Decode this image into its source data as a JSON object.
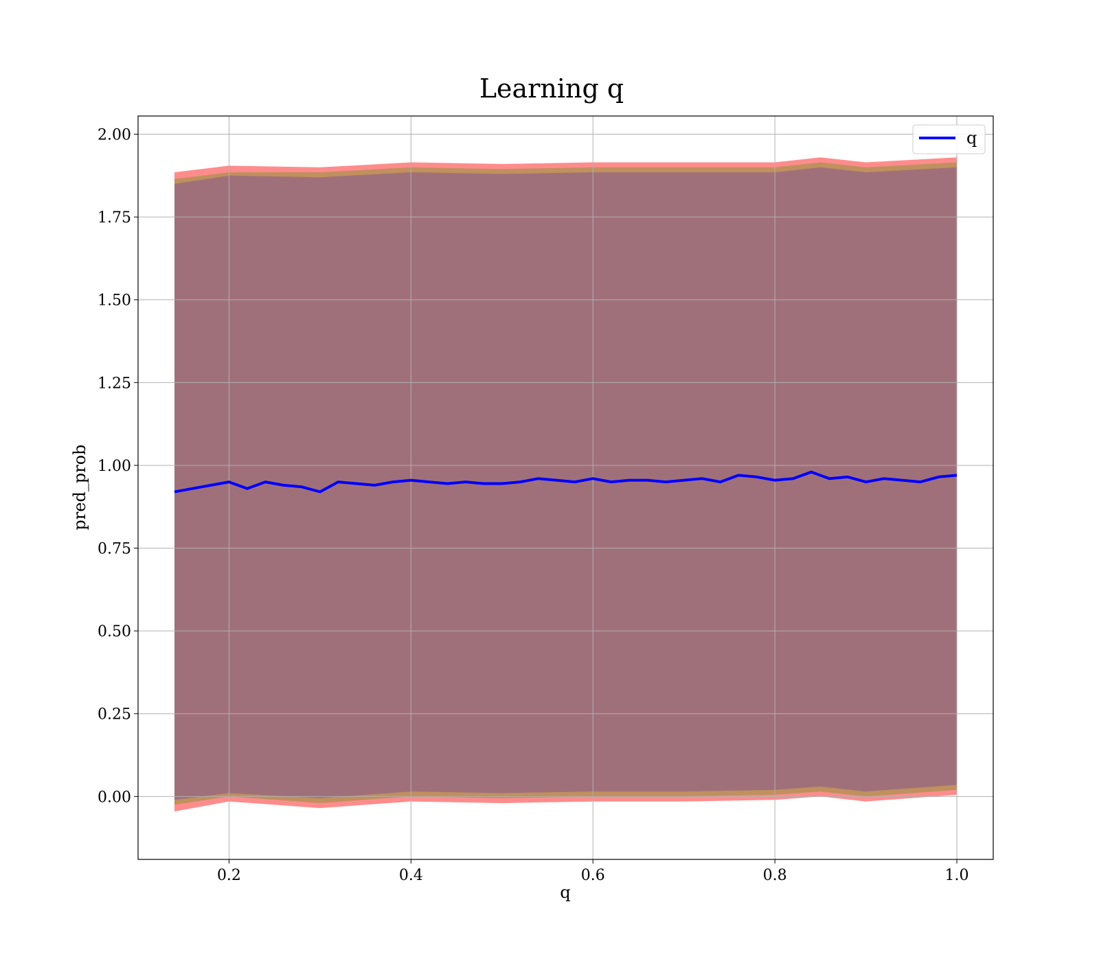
{
  "chart_data": {
    "type": "line",
    "title": "Learning q",
    "xlabel": "q",
    "ylabel": "pred_prob",
    "xlim": [
      0.1,
      1.04
    ],
    "ylim": [
      -0.19,
      2.055
    ],
    "grid": true,
    "legend_position": "top-right",
    "x_ticks": [
      0.2,
      0.4,
      0.6,
      0.8,
      1.0
    ],
    "x_tick_labels": [
      "0.2",
      "0.4",
      "0.6",
      "0.8",
      "1.0"
    ],
    "y_ticks": [
      0.0,
      0.25,
      0.5,
      0.75,
      1.0,
      1.25,
      1.5,
      1.75,
      2.0
    ],
    "y_tick_labels": [
      "0.00",
      "0.25",
      "0.50",
      "0.75",
      "1.00",
      "1.25",
      "1.50",
      "1.75",
      "2.00"
    ],
    "colors": {
      "line": "#0000ff",
      "band_outer": "#ff8c8c",
      "band_middle": "#c0905e",
      "band_inner": "#a0707a",
      "grid": "#b0b0b0"
    },
    "series": [
      {
        "name": "q",
        "x": [
          0.14,
          0.16,
          0.18,
          0.2,
          0.22,
          0.24,
          0.26,
          0.28,
          0.3,
          0.32,
          0.34,
          0.36,
          0.38,
          0.4,
          0.42,
          0.44,
          0.46,
          0.48,
          0.5,
          0.52,
          0.54,
          0.56,
          0.58,
          0.6,
          0.62,
          0.64,
          0.66,
          0.68,
          0.7,
          0.72,
          0.74,
          0.76,
          0.78,
          0.8,
          0.82,
          0.84,
          0.86,
          0.88,
          0.9,
          0.92,
          0.94,
          0.96,
          0.98,
          1.0
        ],
        "y": [
          0.92,
          0.93,
          0.94,
          0.95,
          0.93,
          0.95,
          0.94,
          0.935,
          0.92,
          0.95,
          0.945,
          0.94,
          0.95,
          0.955,
          0.95,
          0.945,
          0.95,
          0.945,
          0.945,
          0.95,
          0.96,
          0.955,
          0.95,
          0.96,
          0.95,
          0.955,
          0.955,
          0.95,
          0.955,
          0.96,
          0.95,
          0.97,
          0.965,
          0.955,
          0.96,
          0.98,
          0.96,
          0.965,
          0.95,
          0.96,
          0.955,
          0.95,
          0.965,
          0.97
        ]
      }
    ],
    "bands": [
      {
        "role": "outer",
        "x": [
          0.14,
          0.2,
          0.3,
          0.4,
          0.5,
          0.6,
          0.7,
          0.8,
          0.85,
          0.9,
          1.0
        ],
        "upper": [
          1.885,
          1.905,
          1.9,
          1.915,
          1.91,
          1.915,
          1.915,
          1.915,
          1.93,
          1.915,
          1.93
        ],
        "lower": [
          -0.045,
          -0.015,
          -0.035,
          -0.015,
          -0.02,
          -0.015,
          -0.015,
          -0.01,
          0.0,
          -0.015,
          0.005
        ]
      },
      {
        "role": "middle",
        "x": [
          0.14,
          0.2,
          0.3,
          0.4,
          0.5,
          0.6,
          0.7,
          0.8,
          0.85,
          0.9,
          1.0
        ],
        "upper": [
          1.865,
          1.885,
          1.885,
          1.9,
          1.895,
          1.9,
          1.9,
          1.9,
          1.915,
          1.9,
          1.915
        ],
        "lower": [
          -0.025,
          0.0,
          -0.02,
          0.0,
          -0.005,
          0.0,
          0.0,
          0.005,
          0.015,
          0.0,
          0.02
        ]
      },
      {
        "role": "inner",
        "x": [
          0.14,
          0.2,
          0.3,
          0.4,
          0.5,
          0.6,
          0.7,
          0.8,
          0.85,
          0.9,
          1.0
        ],
        "upper": [
          1.85,
          1.875,
          1.87,
          1.885,
          1.88,
          1.885,
          1.885,
          1.885,
          1.9,
          1.885,
          1.9
        ],
        "lower": [
          -0.01,
          0.01,
          -0.005,
          0.015,
          0.01,
          0.015,
          0.015,
          0.02,
          0.03,
          0.015,
          0.035
        ]
      }
    ]
  }
}
